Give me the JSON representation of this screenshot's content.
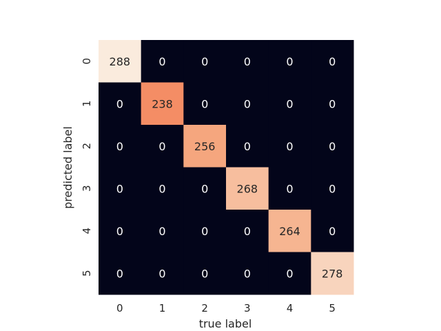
{
  "chart_data": {
    "type": "heatmap",
    "title": "",
    "xlabel": "true label",
    "ylabel": "predicted label",
    "x_categories": [
      "0",
      "1",
      "2",
      "3",
      "4",
      "5"
    ],
    "y_categories": [
      "0",
      "1",
      "2",
      "3",
      "4",
      "5"
    ],
    "values": [
      [
        288,
        0,
        0,
        0,
        0,
        0
      ],
      [
        0,
        238,
        0,
        0,
        0,
        0
      ],
      [
        0,
        0,
        256,
        0,
        0,
        0
      ],
      [
        0,
        0,
        0,
        268,
        0,
        0
      ],
      [
        0,
        0,
        0,
        0,
        264,
        0
      ],
      [
        0,
        0,
        0,
        0,
        0,
        278
      ]
    ],
    "colorbar": false,
    "grid": false,
    "colors": {
      "zero": "#03051a",
      "low": "#f5a27c",
      "high": "#faebdd",
      "text_on_dark": "#ffffff",
      "text_on_light": "#262626"
    }
  }
}
